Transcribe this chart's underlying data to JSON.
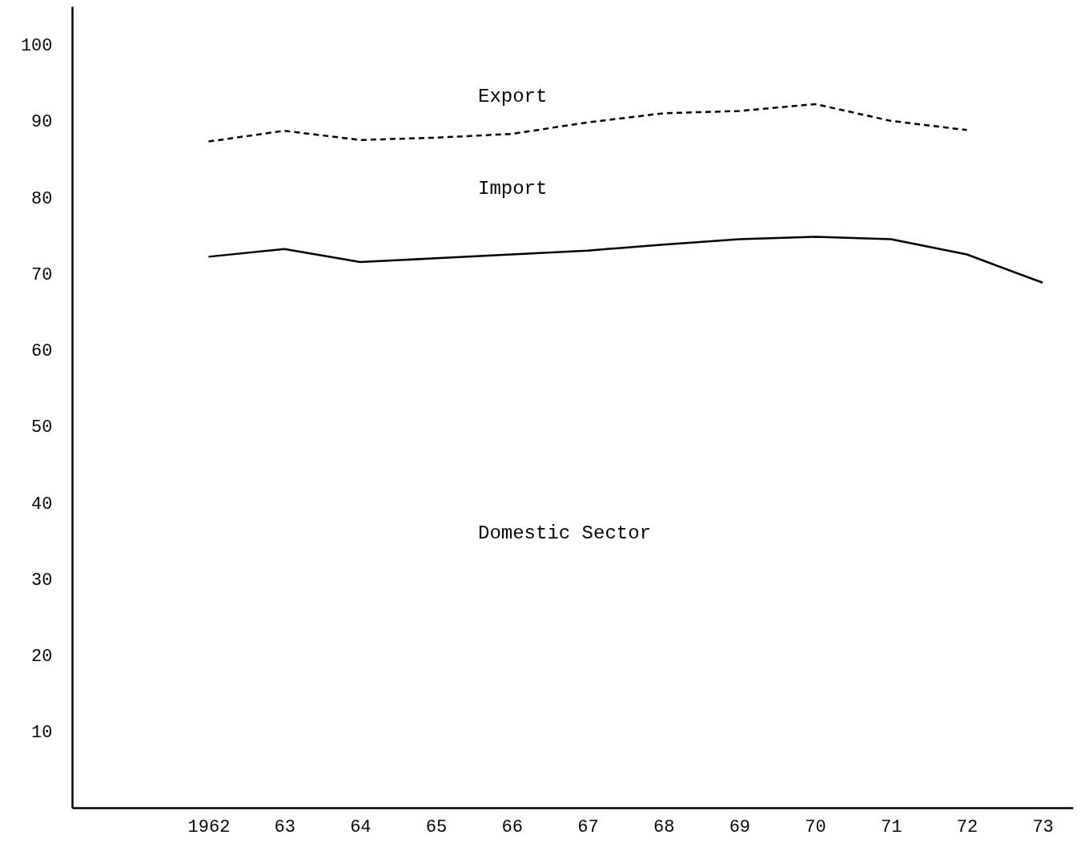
{
  "chart_data": {
    "type": "line",
    "x": [
      1962,
      1963,
      1964,
      1965,
      1966,
      1967,
      1968,
      1969,
      1970,
      1971,
      1972,
      1973
    ],
    "series": [
      {
        "color": "#000000",
        "line_style": "dashed",
        "x": [
          1962,
          1963,
          1964,
          1965,
          1966,
          1967,
          1968,
          1969,
          1970,
          1971,
          1972
        ],
        "values": [
          87.3,
          88.7,
          87.5,
          87.8,
          88.3,
          89.8,
          91,
          91.3,
          92.2,
          90,
          88.8
        ]
      },
      {
        "color": "#000000",
        "line_style": "solid",
        "values": [
          72.2,
          73.2,
          71.5,
          72,
          72.5,
          73,
          73.8,
          74.5,
          74.8,
          74.5,
          72.5,
          68.8
        ]
      }
    ],
    "xlim": [
      1960.2,
      1973.4
    ],
    "xticks": [
      1962,
      {
        "value": 1963,
        "label": "63"
      },
      {
        "value": 1964,
        "label": "64"
      },
      {
        "value": 1965,
        "label": "65"
      },
      {
        "value": 1966,
        "label": "66"
      },
      {
        "value": 1967,
        "label": "67"
      },
      {
        "value": 1968,
        "label": "68"
      },
      {
        "value": 1969,
        "label": "69"
      },
      {
        "value": 1970,
        "label": "70"
      },
      {
        "value": 1971,
        "label": "71"
      },
      {
        "value": 1972,
        "label": "72"
      },
      {
        "value": 1973,
        "label": "73"
      }
    ],
    "ylim": [
      0,
      105
    ],
    "yticks": [
      10,
      20,
      30,
      40,
      50,
      60,
      70,
      80,
      90,
      100
    ],
    "annotations": [
      "Export",
      "Import",
      "Domestic Sector"
    ],
    "grid": false
  }
}
